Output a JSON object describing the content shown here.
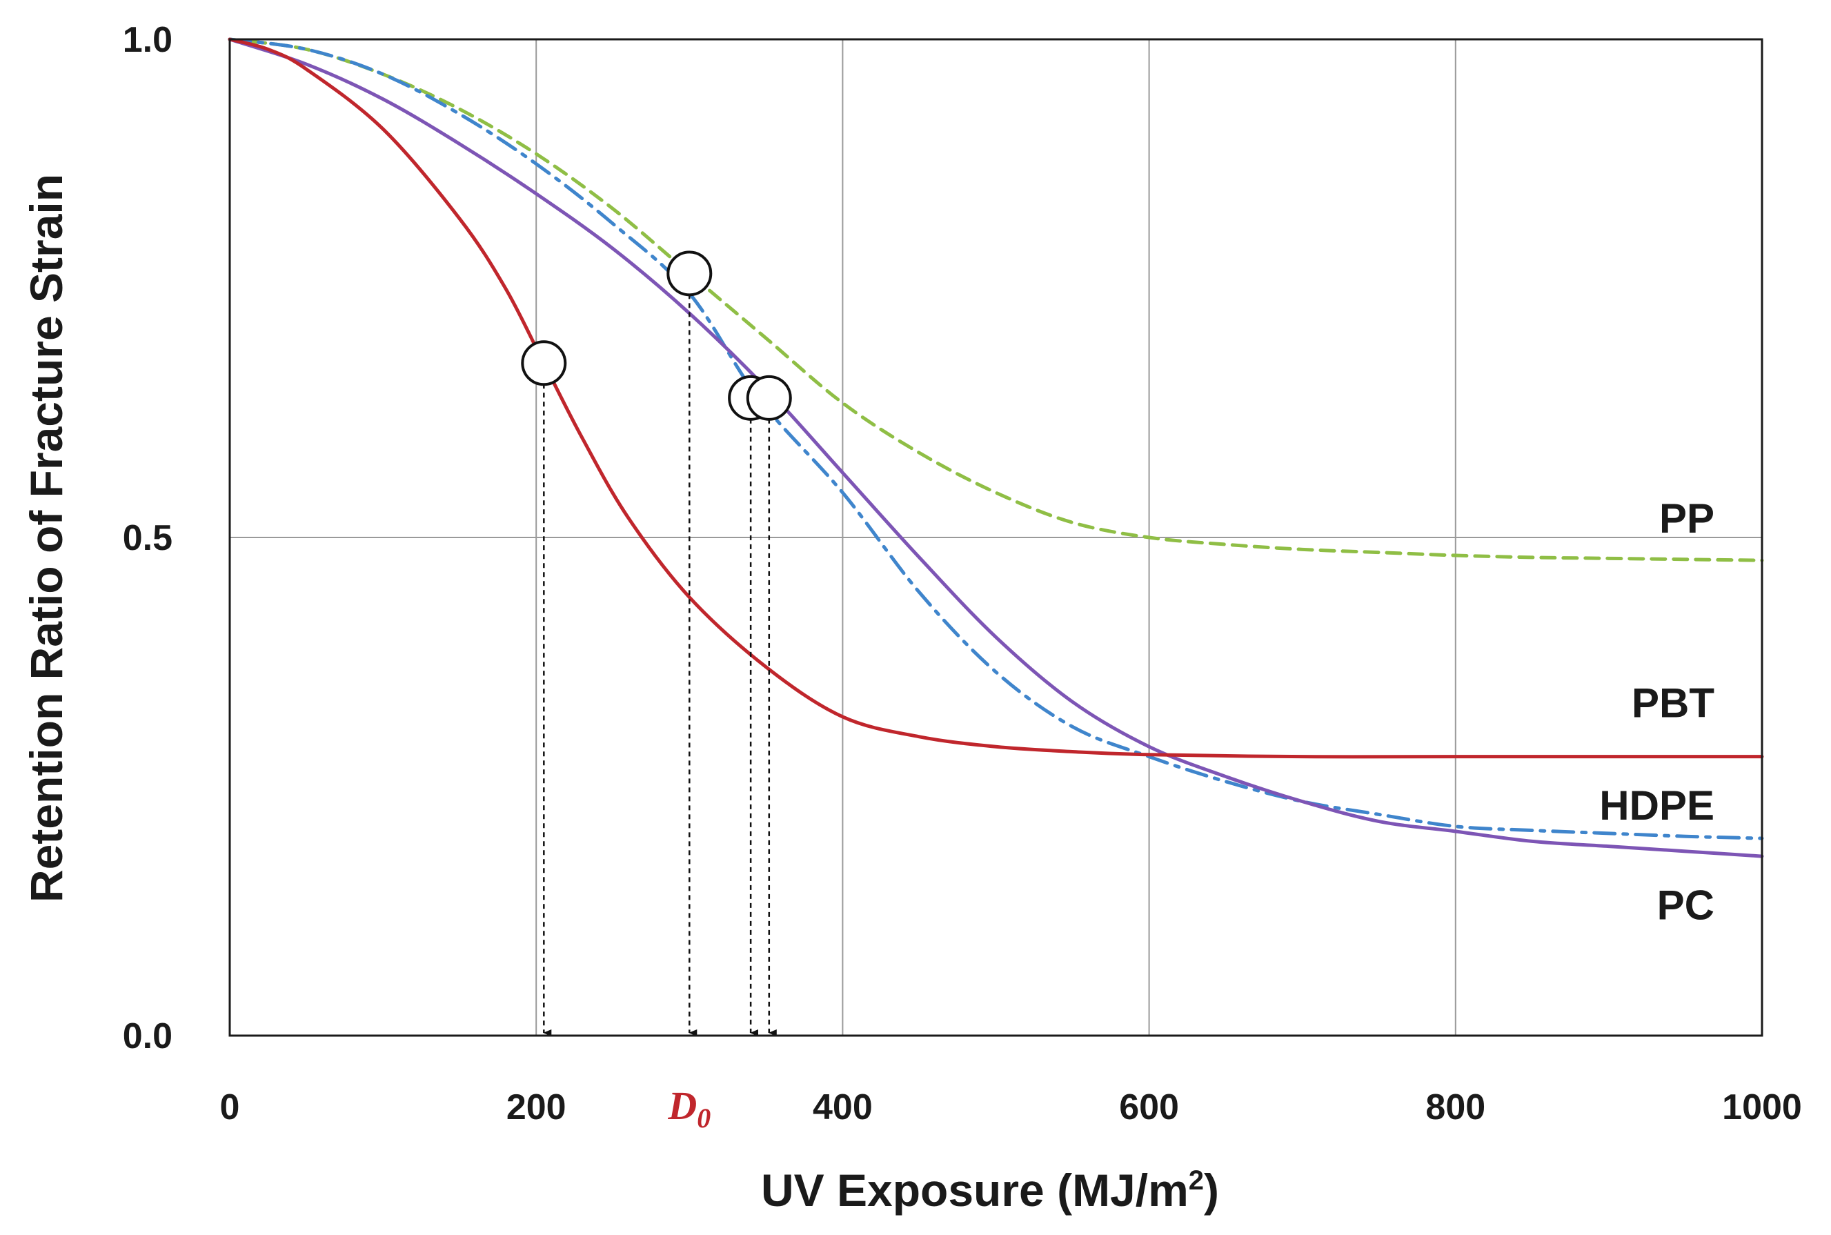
{
  "chart_data": {
    "type": "line",
    "title": "",
    "xlabel": "UV Exposure (MJ/m",
    "xlabel_superscript": "2",
    "xlabel_suffix": ")",
    "ylabel": "Retention Ratio of Fracture Strain",
    "xlim": [
      0,
      1000
    ],
    "ylim": [
      0,
      1.0
    ],
    "grid": true,
    "x_ticks": [
      0,
      200,
      400,
      600,
      800,
      1000
    ],
    "x_tick_labels": [
      "0",
      "200",
      "400",
      "600",
      "800",
      "1000"
    ],
    "y_ticks": [
      0,
      0.5,
      1.0
    ],
    "y_tick_labels": [
      "0.0",
      "0.5",
      "1.0"
    ],
    "d0_label": {
      "text": "D",
      "subscript": "0",
      "x": 300,
      "color": "#c0262c"
    },
    "series": [
      {
        "name": "PP",
        "color": "#8fbe45",
        "style": "dashed",
        "x": [
          0,
          50,
          100,
          150,
          200,
          250,
          300,
          350,
          400,
          450,
          500,
          550,
          600,
          650,
          700,
          750,
          800,
          850,
          900,
          950,
          1000
        ],
        "y": [
          1.0,
          0.99,
          0.965,
          0.93,
          0.885,
          0.83,
          0.765,
          0.7,
          0.635,
          0.585,
          0.545,
          0.515,
          0.5,
          0.493,
          0.488,
          0.485,
          0.482,
          0.48,
          0.479,
          0.478,
          0.477
        ],
        "marker": {
          "x": 300,
          "y": 0.765
        }
      },
      {
        "name": "PBT",
        "color": "#c0262c",
        "style": "solid",
        "x": [
          0,
          25,
          50,
          100,
          150,
          180,
          205,
          230,
          260,
          300,
          350,
          400,
          450,
          500,
          550,
          600,
          700,
          800,
          900,
          1000
        ],
        "y": [
          1.0,
          0.99,
          0.97,
          0.91,
          0.82,
          0.75,
          0.675,
          0.6,
          0.52,
          0.44,
          0.37,
          0.32,
          0.3,
          0.29,
          0.285,
          0.282,
          0.28,
          0.28,
          0.28,
          0.28
        ],
        "marker": {
          "x": 205,
          "y": 0.675
        }
      },
      {
        "name": "HDPE",
        "color": "#3f85cc",
        "style": "dashdot",
        "x": [
          0,
          50,
          100,
          150,
          200,
          250,
          300,
          345,
          400,
          450,
          500,
          550,
          600,
          650,
          700,
          750,
          800,
          850,
          900,
          950,
          1000
        ],
        "y": [
          1.0,
          0.99,
          0.965,
          0.925,
          0.875,
          0.815,
          0.745,
          0.64,
          0.545,
          0.445,
          0.365,
          0.31,
          0.28,
          0.255,
          0.235,
          0.222,
          0.21,
          0.206,
          0.203,
          0.2,
          0.198
        ],
        "marker": {
          "x": 340,
          "y": 0.64
        }
      },
      {
        "name": "PC",
        "color": "#7d55b5",
        "style": "solid",
        "x": [
          0,
          50,
          100,
          150,
          200,
          250,
          300,
          350,
          400,
          450,
          500,
          550,
          600,
          650,
          700,
          750,
          800,
          850,
          900,
          950,
          1000
        ],
        "y": [
          1.0,
          0.975,
          0.94,
          0.895,
          0.845,
          0.79,
          0.725,
          0.65,
          0.565,
          0.48,
          0.4,
          0.335,
          0.29,
          0.26,
          0.235,
          0.215,
          0.205,
          0.195,
          0.19,
          0.185,
          0.18
        ],
        "marker": {
          "x": 352,
          "y": 0.64
        }
      }
    ],
    "series_label_positions": {
      "PP": 0.52,
      "PBT": 0.335,
      "HDPE": 0.232,
      "PC": 0.132
    }
  }
}
